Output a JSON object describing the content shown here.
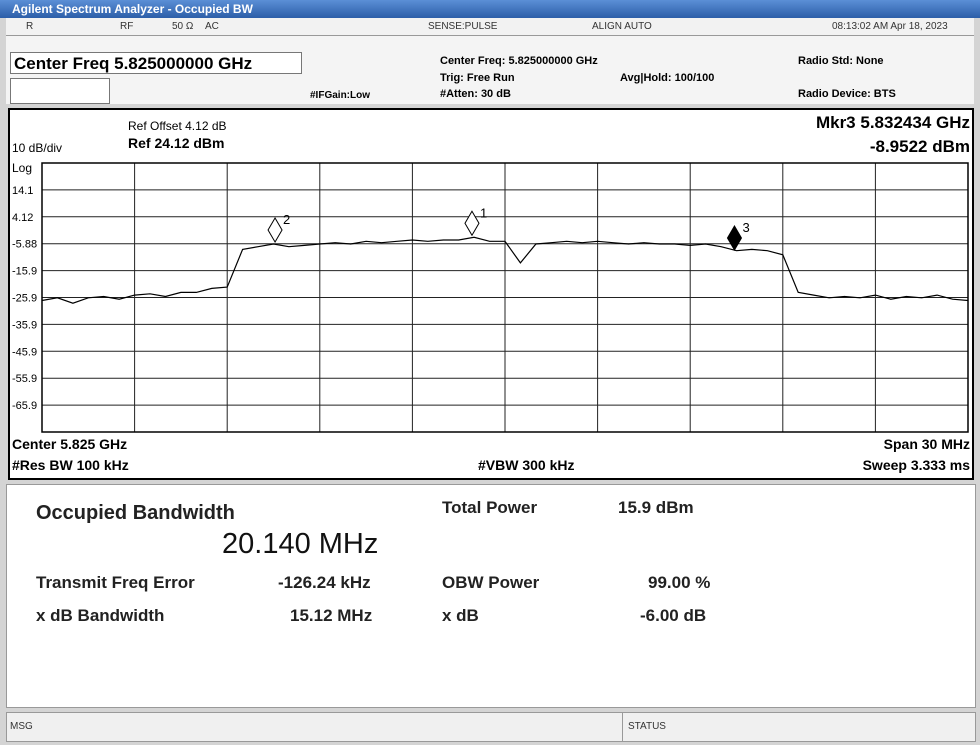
{
  "title_bar": "Agilent Spectrum Analyzer - Occupied BW",
  "status_row": {
    "mode": "R",
    "rf": "RF",
    "impedance": "50 Ω",
    "coupling": "AC",
    "sense": "SENSE:PULSE",
    "align": "ALIGN AUTO",
    "datetime": "08:13:02 AM Apr 18, 2023"
  },
  "settings": {
    "center_freq_box": "Center Freq 5.825000000 GHz",
    "if_gain": "#IFGain:Low",
    "center_freq": "Center Freq: 5.825000000 GHz",
    "trig": "Trig: Free Run",
    "atten": "#Atten: 30 dB",
    "avg_hold": "Avg|Hold: 100/100",
    "radio_std": "Radio Std: None",
    "radio_device": "Radio Device: BTS"
  },
  "plot": {
    "ref_offset": "Ref Offset 4.12 dB",
    "ref_level": "Ref 24.12 dBm",
    "scale": "10 dB/div",
    "scale_type": "Log",
    "marker_readout": "Mkr3  5.832434 GHz",
    "marker_value": "-8.9522 dBm",
    "center": "Center  5.825 GHz",
    "res_bw": "#Res BW  100 kHz",
    "vbw": "#VBW  300 kHz",
    "span": "Span 30 MHz",
    "sweep": "Sweep  3.333 ms",
    "xlim": [
      5.81,
      5.84
    ],
    "ylim": [
      -75.88,
      24.12
    ],
    "xticks": [
      5.81,
      5.813,
      5.816,
      5.819,
      5.822,
      5.825,
      5.828,
      5.831,
      5.834,
      5.837,
      5.84
    ],
    "yticks": [
      {
        "value": 14.12,
        "label": "14.1"
      },
      4.12,
      -5.88,
      {
        "value": -15.88,
        "label": "-15.9"
      },
      {
        "value": -25.88,
        "label": "-25.9"
      },
      {
        "value": -35.88,
        "label": "-35.9"
      },
      {
        "value": -45.88,
        "label": "-45.9"
      },
      {
        "value": -55.88,
        "label": "-55.9"
      },
      {
        "value": -65.88,
        "label": "-65.9"
      }
    ],
    "trace": {
      "color": "#000000",
      "x": [
        5.81,
        5.8105,
        5.811,
        5.8115,
        5.812,
        5.8125,
        5.813,
        5.8135,
        5.814,
        5.8145,
        5.815,
        5.8155,
        5.816,
        5.8165,
        5.817,
        5.8175,
        5.818,
        5.8185,
        5.819,
        5.8195,
        5.82,
        5.8205,
        5.821,
        5.8215,
        5.822,
        5.8225,
        5.823,
        5.8235,
        5.824,
        5.8245,
        5.825,
        5.8255,
        5.826,
        5.8265,
        5.827,
        5.8275,
        5.828,
        5.8285,
        5.829,
        5.8295,
        5.83,
        5.8305,
        5.831,
        5.8315,
        5.832,
        5.8325,
        5.833,
        5.8335,
        5.834,
        5.8345,
        5.835,
        5.8355,
        5.836,
        5.8365,
        5.837,
        5.8375,
        5.838,
        5.8385,
        5.839,
        5.8395,
        5.84
      ],
      "y": [
        -27,
        -26,
        -28,
        -26,
        -25.5,
        -26.5,
        -25,
        -24.5,
        -25.5,
        -24,
        -24,
        -22.5,
        -22,
        -8,
        -7,
        -6,
        -7,
        -6.5,
        -6,
        -5.5,
        -6,
        -5,
        -5.5,
        -5,
        -4.5,
        -5,
        -4.5,
        -4.5,
        -3.5,
        -5,
        -5,
        -13,
        -6,
        -5.5,
        -5,
        -5.5,
        -5,
        -5.5,
        -6,
        -5.5,
        -6,
        -6,
        -6.5,
        -6,
        -7,
        -8.5,
        -8,
        -8.5,
        -10,
        -24,
        -25,
        -26,
        -25.5,
        -26,
        -25,
        -26.5,
        -25.5,
        -26,
        -25,
        -26.5,
        -27
      ]
    },
    "markers": [
      {
        "label": "1",
        "x": 5.82393,
        "y": -3.5,
        "active": false
      },
      {
        "label": "2",
        "x": 5.81755,
        "y": -6,
        "active": false
      },
      {
        "label": "3",
        "x": 5.832434,
        "y": -8.9522,
        "active": true
      }
    ]
  },
  "results": {
    "obw_label": "Occupied Bandwidth",
    "obw_value": "20.140 MHz",
    "total_power_label": "Total Power",
    "total_power_value": "15.9 dBm",
    "freq_error_label": "Transmit Freq Error",
    "freq_error_value": "-126.24 kHz",
    "obw_power_label": "OBW Power",
    "obw_power_value": "99.00 %",
    "xdb_bw_label": "x dB Bandwidth",
    "xdb_bw_value": "15.12 MHz",
    "xdb_label": "x dB",
    "xdb_value": "-6.00 dB"
  },
  "status_bar": {
    "msg": "MSG",
    "status": "STATUS"
  }
}
